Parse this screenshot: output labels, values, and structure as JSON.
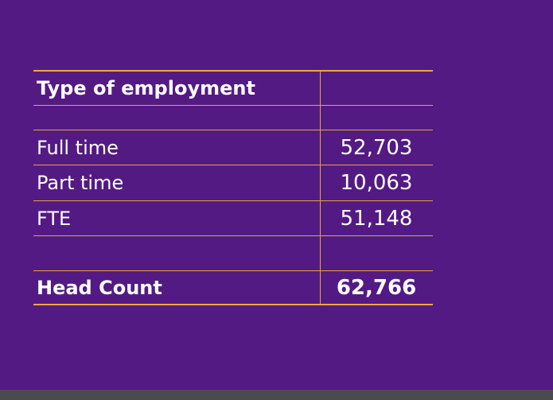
{
  "table": {
    "header": "Type of employment",
    "rows": [
      [
        "Full time",
        "52,703"
      ],
      [
        "Part time",
        "10,063"
      ],
      [
        "FTE",
        "51,148"
      ]
    ],
    "total": [
      "Head Count",
      "62,766"
    ]
  }
}
